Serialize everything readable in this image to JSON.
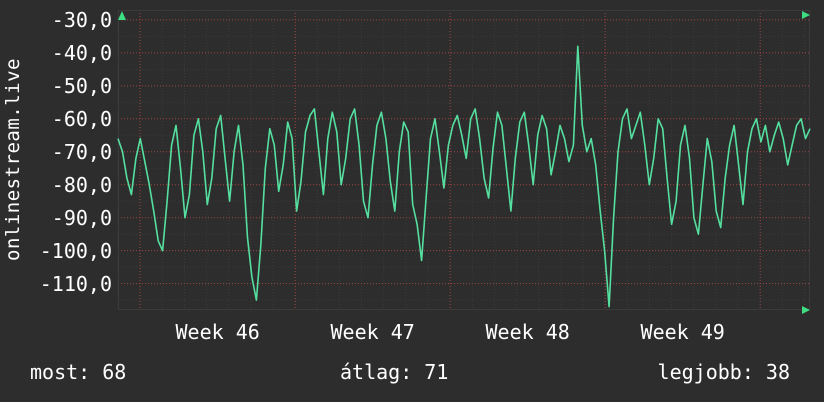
{
  "site_label": "onlinestream.live",
  "stats": {
    "most": "most: 68",
    "atlag": "átlag: 71",
    "legjobb": "legjobb: 38"
  },
  "colors": {
    "background": "#2d2d2d",
    "text": "#ffffff",
    "line": "#55e0a0",
    "arrow": "#3fdd82",
    "grid_minor": "#3b3b3b",
    "grid_major": "#a04545"
  },
  "chart_data": {
    "type": "line",
    "title": "",
    "xlabel": "",
    "ylabel": "",
    "grid": "on",
    "legend": "none",
    "ylim": [
      -118,
      -27
    ],
    "ytick_labels": [
      "-30,0",
      "-40,0",
      "-50,0",
      "-60,0",
      "-70,0",
      "-80,0",
      "-90,0",
      "-100,0",
      "-110,0"
    ],
    "ytick_values": [
      -30,
      -40,
      -50,
      -60,
      -70,
      -80,
      -90,
      -100,
      -110
    ],
    "week_labels": [
      "Week 46",
      "Week 47",
      "Week 48",
      "Week 49"
    ],
    "week_boundaries_frac": [
      0.032,
      0.256,
      0.48,
      0.704,
      0.928
    ],
    "values": [
      -66,
      -70,
      -78,
      -83,
      -72,
      -66,
      -73,
      -80,
      -88,
      -97,
      -100,
      -85,
      -68,
      -62,
      -75,
      -90,
      -83,
      -65,
      -60,
      -70,
      -86,
      -78,
      -63,
      -59,
      -72,
      -85,
      -70,
      -62,
      -74,
      -96,
      -108,
      -115,
      -98,
      -75,
      -63,
      -68,
      -82,
      -74,
      -61,
      -66,
      -88,
      -79,
      -64,
      -59,
      -57,
      -70,
      -83,
      -66,
      -58,
      -64,
      -80,
      -72,
      -60,
      -57,
      -68,
      -85,
      -90,
      -74,
      -62,
      -58,
      -66,
      -79,
      -88,
      -70,
      -61,
      -64,
      -86,
      -92,
      -103,
      -84,
      -66,
      -60,
      -70,
      -81,
      -68,
      -62,
      -59,
      -65,
      -72,
      -60,
      -57,
      -66,
      -78,
      -84,
      -69,
      -58,
      -62,
      -75,
      -88,
      -72,
      -61,
      -58,
      -68,
      -80,
      -65,
      -59,
      -63,
      -77,
      -70,
      -62,
      -66,
      -73,
      -68,
      -38,
      -62,
      -70,
      -66,
      -74,
      -88,
      -100,
      -117,
      -90,
      -70,
      -60,
      -57,
      -66,
      -62,
      -58,
      -68,
      -80,
      -72,
      -60,
      -63,
      -78,
      -92,
      -85,
      -68,
      -62,
      -72,
      -90,
      -95,
      -80,
      -66,
      -73,
      -88,
      -93,
      -78,
      -68,
      -62,
      -74,
      -86,
      -70,
      -63,
      -60,
      -67,
      -62,
      -70,
      -65,
      -61,
      -66,
      -74,
      -68,
      -62,
      -60,
      -66,
      -63
    ]
  }
}
